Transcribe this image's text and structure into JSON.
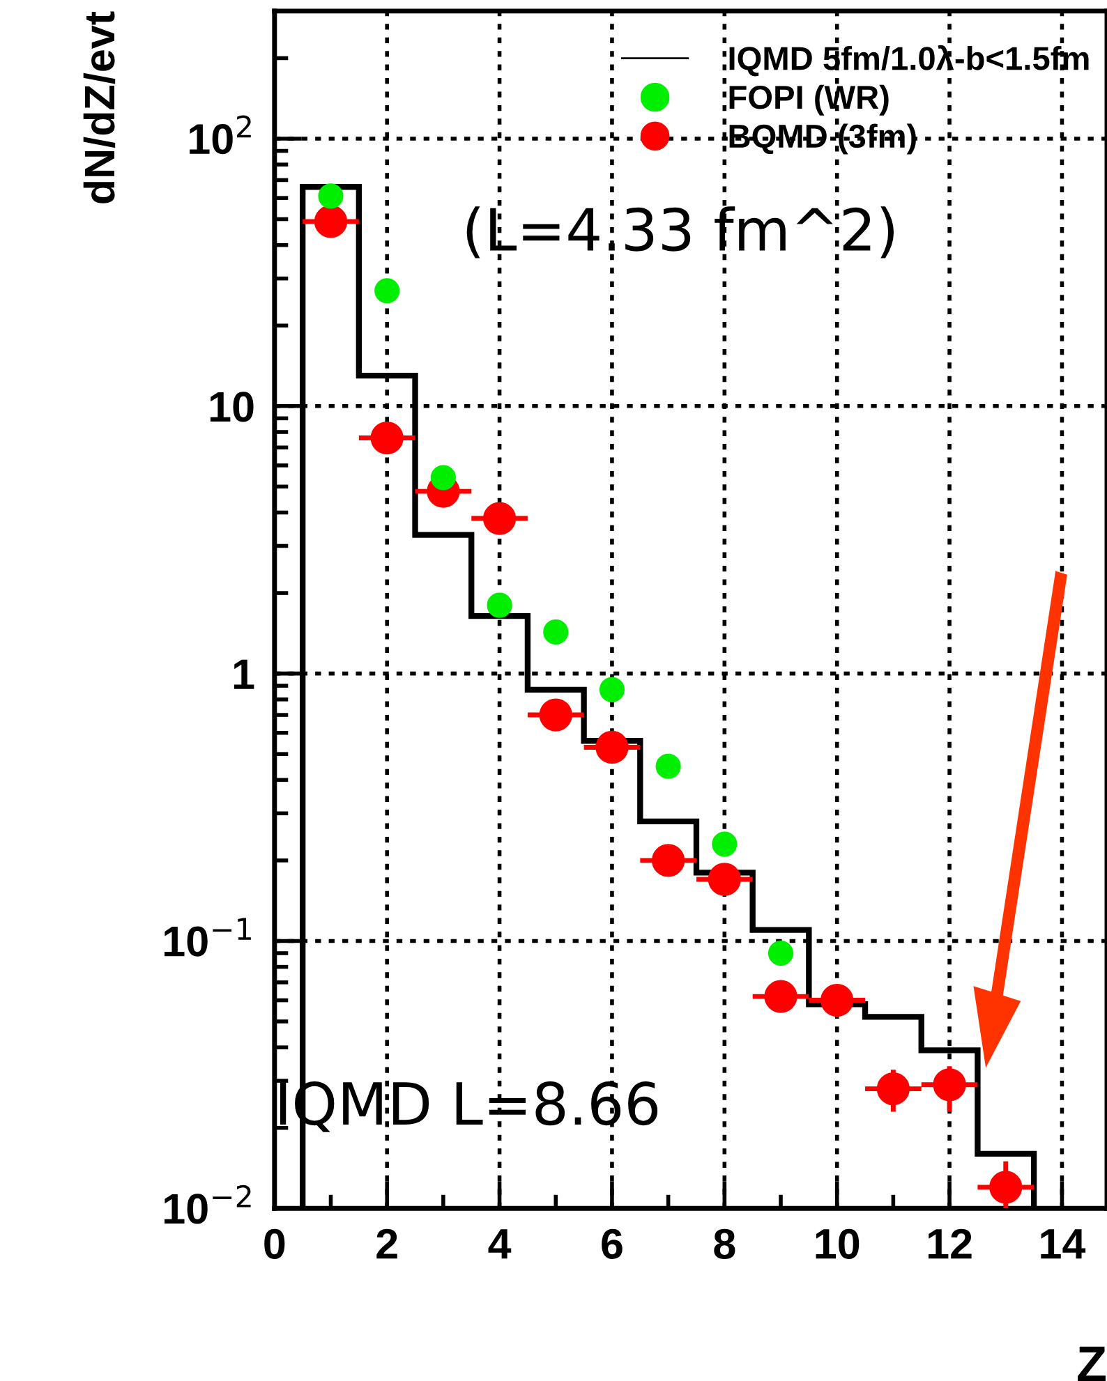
{
  "chart_data": {
    "type": "scatter",
    "ylabel": "dN/dZ/evt",
    "xlabel": "Z",
    "log": "y",
    "grid": true,
    "legend": "top right",
    "xlim": [
      0,
      14.8
    ],
    "xticks": [
      0,
      2,
      4,
      6,
      8,
      10,
      12,
      14
    ],
    "ylim": [
      0.01,
      300
    ],
    "yticks": [
      {
        "value": 0.01,
        "label": "10$^{−2}$"
      },
      {
        "value": 0.1,
        "label": "10$^{−1}$"
      },
      1,
      10,
      {
        "value": 100,
        "label": "10$^{2}$"
      }
    ],
    "series": [
      {
        "name": "IQMD 5fm/1.0λ-b<1.5fm",
        "type": "histogram",
        "color": "#000000",
        "bins": [
          0.5,
          1.5,
          2.5,
          3.5,
          4.5,
          5.5,
          6.5,
          7.5,
          8.5,
          9.5,
          10.5,
          11.5,
          12.5,
          13.5
        ],
        "values": [
          66,
          13,
          3.3,
          1.64,
          0.87,
          0.56,
          0.28,
          0.18,
          0.11,
          0.058,
          0.052,
          0.039,
          0.016
        ]
      },
      {
        "name": "FOPI (WR)",
        "marker": "circle",
        "color": "#00ee00",
        "x": [
          1,
          2,
          3,
          4,
          5,
          6,
          7,
          8,
          9
        ],
        "values": [
          61,
          27,
          5.4,
          1.8,
          1.43,
          0.87,
          0.45,
          0.23,
          0.09
        ]
      },
      {
        "name": "BQMD (3fm)",
        "marker": "circle",
        "color": "#ff0000",
        "x": [
          1,
          2,
          3,
          4,
          5,
          6,
          7,
          8,
          9,
          10,
          11,
          12,
          13
        ],
        "values": [
          49,
          7.6,
          4.8,
          3.8,
          0.7,
          0.53,
          0.2,
          0.17,
          0.062,
          0.06,
          0.028,
          0.029,
          0.012
        ],
        "xerrors": [
          0.5,
          0.5,
          0.5,
          0.5,
          0.5,
          0.5,
          0.5,
          0.5,
          0.5,
          0.5,
          0.5,
          0.5,
          0.5
        ],
        "errors": [
          null,
          null,
          null,
          null,
          null,
          null,
          null,
          null,
          null,
          null,
          [
            0.023,
            0.033
          ],
          [
            0.023,
            0.034
          ],
          [
            0.01,
            0.015
          ]
        ]
      }
    ],
    "annotations": [
      "(L=4.33 fm^2)",
      "IQMD L=8.66"
    ]
  }
}
